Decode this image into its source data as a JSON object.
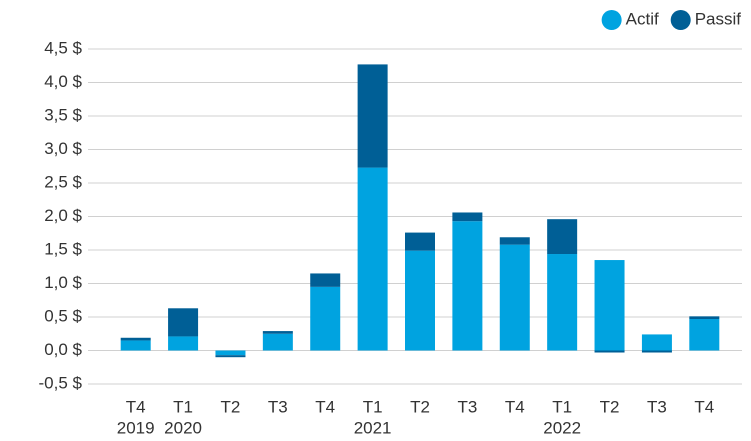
{
  "chart_data": {
    "type": "stacked_bar",
    "categories": [
      "T4",
      "T1",
      "T2",
      "T3",
      "T4",
      "T1",
      "T2",
      "T3",
      "T4",
      "T1",
      "T2",
      "T3",
      "T4"
    ],
    "years": [
      "2019",
      "2020",
      null,
      null,
      null,
      "2021",
      null,
      null,
      null,
      "2022",
      null,
      null,
      null
    ],
    "series": [
      {
        "name": "Actif",
        "color": "#00a3e0",
        "values": [
          0.15,
          0.21,
          -0.07,
          0.25,
          0.95,
          2.73,
          1.49,
          1.93,
          1.58,
          1.44,
          1.35,
          0.24,
          0.47
        ]
      },
      {
        "name": "Passif",
        "color": "#005f96",
        "values": [
          0.04,
          0.42,
          -0.03,
          0.04,
          0.2,
          1.54,
          0.27,
          0.13,
          0.11,
          0.52,
          -0.03,
          -0.03,
          0.04
        ]
      }
    ],
    "ylim": [
      -0.5,
      4.5
    ],
    "yticks": [
      {
        "value": -0.5,
        "label": "-0,5 $"
      },
      {
        "value": 0,
        "label": "0,0 $"
      },
      {
        "value": 0.5,
        "label": "0,5 $"
      },
      {
        "value": 1,
        "label": "1,0 $"
      },
      {
        "value": 1.5,
        "label": "1,5 $"
      },
      {
        "value": 2,
        "label": "2,0 $"
      },
      {
        "value": 2.5,
        "label": "2,5 $"
      },
      {
        "value": 3,
        "label": "3,0 $"
      },
      {
        "value": 3.5,
        "label": "3,5 $"
      },
      {
        "value": 4,
        "label": "4,0 $"
      },
      {
        "value": 4.5,
        "label": "4,5 $"
      }
    ],
    "grid": true,
    "legend": "top-right"
  }
}
